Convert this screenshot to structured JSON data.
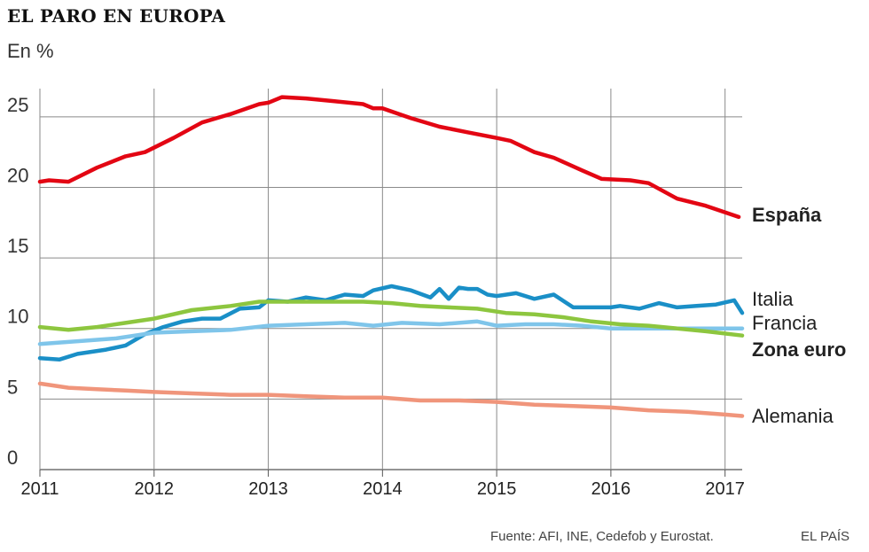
{
  "header": {
    "title": "EL PARO EN EUROPA",
    "unit": "En %"
  },
  "footer": {
    "source": "Fuente: AFI, INE, Cedefob y Eurostat.",
    "brand": "EL PAÍS"
  },
  "chart_data": {
    "type": "line",
    "title": "EL PARO EN EUROPA",
    "ylabel": "En %",
    "xlim": [
      2011,
      2017.15
    ],
    "ylim": [
      0,
      27
    ],
    "yticks": [
      0,
      5,
      10,
      15,
      20,
      25
    ],
    "xticks": [
      2011,
      2012,
      2013,
      2014,
      2015,
      2016,
      2017
    ],
    "grid": true,
    "legend": "end-of-line labels (right)",
    "series": [
      {
        "name": "España",
        "color": "#e30613",
        "bold": true,
        "x": [
          2011,
          2011.08,
          2011.25,
          2011.5,
          2011.75,
          2011.92,
          2012.17,
          2012.42,
          2012.67,
          2012.92,
          2013,
          2013.12,
          2013.33,
          2013.58,
          2013.83,
          2013.92,
          2014,
          2014.25,
          2014.5,
          2014.75,
          2015,
          2015.12,
          2015.33,
          2015.5,
          2015.75,
          2015.92,
          2016.17,
          2016.33,
          2016.58,
          2016.83,
          2017.12
        ],
        "y": [
          20.4,
          20.5,
          20.4,
          21.4,
          22.2,
          22.5,
          23.5,
          24.6,
          25.2,
          25.9,
          26.0,
          26.4,
          26.3,
          26.1,
          25.9,
          25.6,
          25.6,
          24.9,
          24.3,
          23.9,
          23.5,
          23.3,
          22.5,
          22.1,
          21.2,
          20.6,
          20.5,
          20.3,
          19.2,
          18.7,
          17.9
        ]
      },
      {
        "name": "Italia",
        "color": "#1a8fc7",
        "bold": false,
        "x": [
          2011,
          2011.17,
          2011.33,
          2011.58,
          2011.75,
          2011.92,
          2012.08,
          2012.25,
          2012.42,
          2012.58,
          2012.75,
          2012.92,
          2013,
          2013.17,
          2013.33,
          2013.5,
          2013.67,
          2013.83,
          2013.92,
          2014.08,
          2014.25,
          2014.42,
          2014.5,
          2014.58,
          2014.67,
          2014.75,
          2014.83,
          2014.92,
          2015,
          2015.17,
          2015.33,
          2015.5,
          2015.67,
          2015.83,
          2016,
          2016.08,
          2016.25,
          2016.42,
          2016.58,
          2016.75,
          2016.92,
          2017.08,
          2017.15
        ],
        "y": [
          7.9,
          7.8,
          8.2,
          8.5,
          8.8,
          9.6,
          10.1,
          10.5,
          10.7,
          10.7,
          11.4,
          11.5,
          12.0,
          11.9,
          12.2,
          12.0,
          12.4,
          12.3,
          12.7,
          13.0,
          12.7,
          12.2,
          12.8,
          12.1,
          12.9,
          12.8,
          12.8,
          12.4,
          12.3,
          12.5,
          12.1,
          12.4,
          11.5,
          11.5,
          11.5,
          11.6,
          11.4,
          11.8,
          11.5,
          11.6,
          11.7,
          12.0,
          11.1
        ]
      },
      {
        "name": "Francia",
        "color": "#7fc5ea",
        "bold": false,
        "x": [
          2011,
          2011.33,
          2011.67,
          2012,
          2012.33,
          2012.67,
          2013,
          2013.33,
          2013.67,
          2013.92,
          2014.17,
          2014.5,
          2014.83,
          2015,
          2015.25,
          2015.5,
          2015.75,
          2016,
          2016.33,
          2016.67,
          2017,
          2017.15
        ],
        "y": [
          8.9,
          9.1,
          9.3,
          9.7,
          9.8,
          9.9,
          10.2,
          10.3,
          10.4,
          10.2,
          10.4,
          10.3,
          10.5,
          10.2,
          10.3,
          10.3,
          10.2,
          10.0,
          10.0,
          10.0,
          10.0,
          10.0
        ]
      },
      {
        "name": "Zona euro",
        "color": "#8dc63f",
        "bold": true,
        "x": [
          2011,
          2011.25,
          2011.5,
          2011.75,
          2012,
          2012.33,
          2012.67,
          2012.92,
          2013.17,
          2013.5,
          2013.83,
          2014.08,
          2014.33,
          2014.58,
          2014.83,
          2015.08,
          2015.33,
          2015.58,
          2015.83,
          2016.08,
          2016.33,
          2016.58,
          2016.83,
          2017.15
        ],
        "y": [
          10.1,
          9.9,
          10.1,
          10.4,
          10.7,
          11.3,
          11.6,
          11.9,
          11.9,
          11.9,
          11.9,
          11.8,
          11.6,
          11.5,
          11.4,
          11.1,
          11.0,
          10.8,
          10.5,
          10.3,
          10.2,
          10.0,
          9.8,
          9.5
        ]
      },
      {
        "name": "Alemania",
        "color": "#f0957b",
        "bold": false,
        "x": [
          2011,
          2011.25,
          2011.5,
          2011.75,
          2012,
          2012.33,
          2012.67,
          2013,
          2013.33,
          2013.67,
          2014,
          2014.33,
          2014.67,
          2015,
          2015.33,
          2015.67,
          2016,
          2016.33,
          2016.67,
          2017,
          2017.15
        ],
        "y": [
          6.1,
          5.8,
          5.7,
          5.6,
          5.5,
          5.4,
          5.3,
          5.3,
          5.2,
          5.1,
          5.1,
          4.9,
          4.9,
          4.8,
          4.6,
          4.5,
          4.4,
          4.2,
          4.1,
          3.9,
          3.8
        ]
      }
    ]
  }
}
